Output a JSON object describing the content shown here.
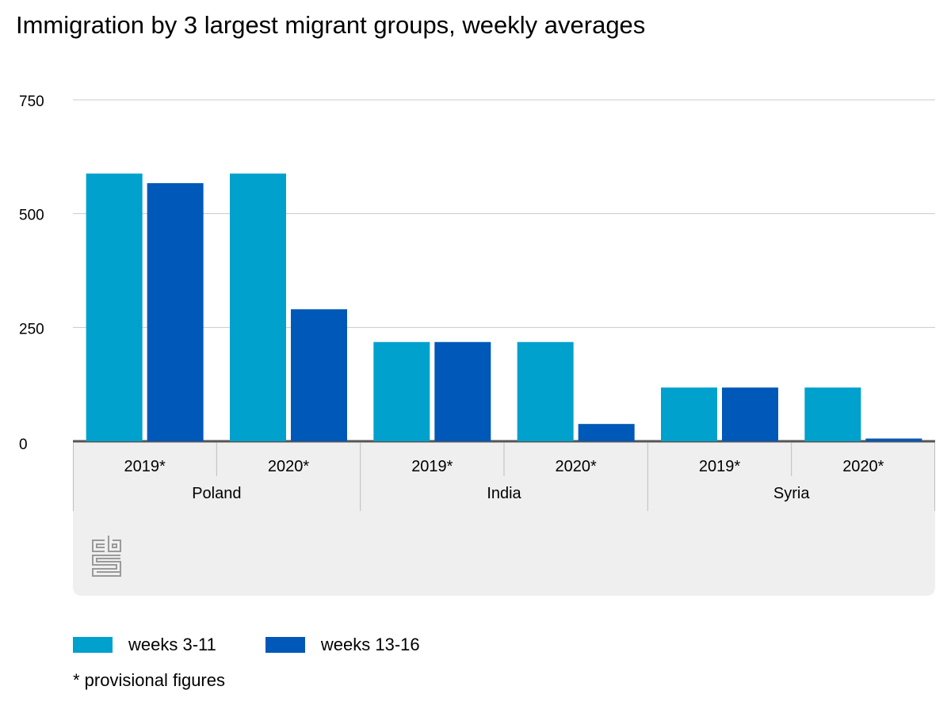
{
  "chart_data": {
    "type": "bar",
    "title": "Immigration by 3 largest migrant groups, weekly averages",
    "y_ticks": [
      "0",
      "250",
      "500",
      "750"
    ],
    "ylim": [
      0,
      750
    ],
    "grid": true,
    "groups": [
      {
        "name": "Poland",
        "categories": [
          "2019*",
          "2020*"
        ]
      },
      {
        "name": "India",
        "categories": [
          "2019*",
          "2020*"
        ]
      },
      {
        "name": "Syria",
        "categories": [
          "2019*",
          "2020*"
        ]
      }
    ],
    "series": [
      {
        "name": "weeks 3-11",
        "color": "#00a1cd",
        "values": [
          588,
          588,
          218,
          218,
          118,
          118
        ]
      },
      {
        "name": "weeks 13-16",
        "color": "#0058b8",
        "values": [
          567,
          290,
          218,
          38,
          118,
          6
        ]
      }
    ],
    "legend_position": "bottom-left",
    "footnote": "* provisional figures",
    "logo": "cbs"
  }
}
